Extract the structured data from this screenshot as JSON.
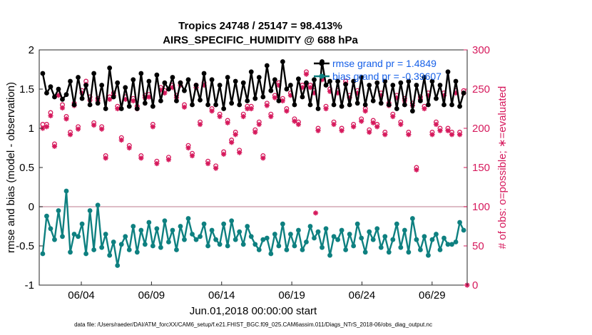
{
  "chart_data": {
    "type": "line",
    "title": "Tropics 24748 / 25147 = 98.413%",
    "subtitle": "AIRS_SPECIFIC_HUMIDITY @ 688 hPa",
    "xlabel": "Jun.01,2018 00:00:00 start",
    "ylabel": "rmse and bias (model - observation)",
    "ylabel_right": "# of obs: o=possible; ∗=evaluated",
    "xlim": [
      1,
      31.5
    ],
    "ylim": [
      -1,
      2
    ],
    "ylim_right": [
      0,
      300
    ],
    "x_tick_values": [
      4,
      9,
      14,
      19,
      24,
      29
    ],
    "x_tick_labels": [
      "06/04",
      "06/09",
      "06/14",
      "06/19",
      "06/24",
      "06/29"
    ],
    "y_tick_values": [
      -1,
      -0.5,
      0,
      0.5,
      1,
      1.5,
      2
    ],
    "y_tick_labels": [
      "-1",
      "-0.5",
      "0",
      "0.5",
      "1",
      "1.5",
      "2"
    ],
    "y_right_tick_values": [
      0,
      50,
      100,
      150,
      200,
      250,
      300
    ],
    "y_right_tick_labels": [
      "0",
      "50",
      "100",
      "150",
      "200",
      "250",
      "300"
    ],
    "zero_line": 0,
    "grid": false,
    "legend_position": "top-right",
    "series": [
      {
        "name": "rmse grand pr = 1.4849",
        "axis": "left",
        "color": "#000000",
        "values": [
          1.7,
          1.45,
          1.53,
          1.4,
          1.5,
          1.37,
          1.43,
          1.6,
          1.3,
          1.65,
          1.38,
          1.55,
          1.3,
          1.7,
          1.32,
          1.55,
          1.25,
          1.77,
          1.4,
          1.58,
          1.25,
          1.52,
          1.28,
          1.62,
          1.25,
          1.7,
          1.32,
          1.6,
          1.28,
          1.68,
          1.35,
          1.58,
          1.5,
          1.65,
          1.35,
          1.58,
          1.48,
          1.62,
          1.3,
          1.55,
          1.36,
          1.7,
          1.3,
          1.62,
          1.3,
          1.55,
          1.25,
          1.65,
          1.32,
          1.6,
          1.3,
          1.58,
          1.35,
          1.72,
          1.38,
          1.65,
          1.4,
          1.8,
          1.48,
          1.62,
          1.35,
          1.85,
          1.5,
          1.55,
          1.3,
          1.63,
          1.4,
          1.58,
          1.3,
          1.62,
          1.25,
          1.85,
          1.55,
          1.6,
          1.3,
          1.6,
          1.28,
          1.56,
          1.3,
          1.6,
          1.32,
          1.65,
          1.3,
          1.55,
          1.35,
          1.58,
          1.32,
          1.6,
          1.3,
          1.55,
          1.25,
          1.58,
          1.3,
          1.6,
          1.22,
          1.55,
          1.35,
          1.65,
          1.3,
          1.6,
          1.38,
          1.55,
          1.3,
          1.72,
          1.3,
          1.6,
          1.28,
          1.45
        ]
      },
      {
        "name": "bias grand pr = -0.39607",
        "axis": "left",
        "color": "#0e8080",
        "values": [
          -0.6,
          -0.12,
          -0.28,
          -0.42,
          -0.05,
          -0.38,
          0.2,
          -0.58,
          -0.35,
          -0.38,
          -0.22,
          -0.6,
          -0.05,
          -0.55,
          0.02,
          -0.52,
          -0.35,
          -0.62,
          -0.45,
          -0.75,
          -0.48,
          -0.38,
          -0.55,
          -0.25,
          -0.58,
          -0.3,
          -0.48,
          -0.2,
          -0.5,
          -0.28,
          -0.52,
          -0.18,
          -0.45,
          -0.3,
          -0.55,
          -0.25,
          -0.42,
          -0.15,
          -0.35,
          -0.42,
          -0.38,
          -0.22,
          -0.5,
          -0.3,
          -0.42,
          -0.48,
          -0.22,
          -0.5,
          -0.18,
          -0.42,
          -0.32,
          -0.48,
          -0.25,
          -0.38,
          -0.48,
          -0.55,
          -0.42,
          -0.4,
          -0.6,
          -0.35,
          -0.5,
          -0.22,
          -0.55,
          -0.35,
          -0.5,
          -0.3,
          -0.55,
          -0.45,
          -0.25,
          -0.4,
          -0.32,
          -0.52,
          -0.28,
          -0.62,
          -0.38,
          -0.42,
          -0.3,
          -0.55,
          -0.35,
          -0.5,
          -0.22,
          -0.4,
          -0.58,
          -0.32,
          -0.42,
          -0.28,
          -0.52,
          -0.38,
          -0.58,
          -0.42,
          -0.22,
          -0.52,
          -0.3,
          -0.58,
          -0.15,
          -0.42,
          -0.55,
          -0.38,
          -0.62,
          -0.42,
          -0.35,
          -0.55,
          -0.4,
          -0.48,
          -0.48,
          -0.45,
          -0.2,
          -0.3
        ]
      },
      {
        "name": "obs possible",
        "axis": "right",
        "color": "#d6195c",
        "values": [
          205,
          205,
          220,
          180,
          245,
          230,
          215,
          195,
          232,
          202,
          248,
          260,
          240,
          207,
          238,
          202,
          165,
          240,
          245,
          228,
          188,
          240,
          178,
          238,
          228,
          165,
          242,
          243,
          205,
          158,
          252,
          248,
          163,
          255,
          242,
          258,
          230,
          178,
          168,
          255,
          208,
          258,
          158,
          225,
          152,
          218,
          170,
          210,
          185,
          195,
          172,
          218,
          228,
          228,
          198,
          208,
          165,
          232,
          218,
          242,
          258,
          238,
          225,
          245,
          212,
          208,
          255,
          272,
          255,
          248,
          200,
          265,
          228,
          250,
          208,
          248,
          200,
          260,
          242,
          205,
          248,
          212,
          225,
          198,
          210,
          205,
          245,
          195,
          232,
          218,
          242,
          208,
          238,
          195,
          232,
          150,
          240,
          228,
          245,
          195,
          208,
          200,
          245,
          200,
          195,
          248,
          195,
          248
        ],
        "stroke": "circle"
      },
      {
        "name": "obs evaluated",
        "axis": "right",
        "color": "#d6195c",
        "values": [
          200,
          202,
          216,
          177,
          242,
          226,
          212,
          192,
          229,
          199,
          245,
          256,
          236,
          204,
          235,
          199,
          162,
          237,
          242,
          225,
          185,
          237,
          175,
          235,
          225,
          162,
          239,
          240,
          202,
          155,
          249,
          245,
          160,
          252,
          239,
          255,
          227,
          175,
          165,
          252,
          205,
          255,
          155,
          222,
          149,
          215,
          167,
          207,
          182,
          192,
          169,
          215,
          225,
          225,
          195,
          205,
          162,
          229,
          215,
          239,
          255,
          235,
          222,
          242,
          209,
          205,
          252,
          269,
          252,
          245,
          197,
          262,
          225,
          247,
          205,
          245,
          197,
          257,
          239,
          202,
          245,
          209,
          222,
          195,
          207,
          202,
          242,
          192,
          229,
          215,
          239,
          205,
          235,
          192,
          229,
          147,
          237,
          225,
          242,
          192,
          205,
          197,
          242,
          197,
          192,
          245,
          192,
          245
        ]
      }
    ],
    "extra_evaluated_points": [
      {
        "x": 20.7,
        "y_right": 92
      },
      {
        "x": 31.5,
        "y_right": 0
      }
    ],
    "legend": [
      {
        "label": "rmse grand pr = 1.4849",
        "color": "#000000"
      },
      {
        "label": "bias grand pr = -0.39607",
        "color": "#0e8080"
      }
    ],
    "footer": "data file: /Users/raeder/DAI/ATM_forcXX/CAM6_setup/f.e21.FHIST_BGC.f09_025.CAM6assim.011/Diags_NTrS_2018-06/obs_diag_output.nc"
  },
  "colors": {
    "rmse": "#000000",
    "bias": "#0e8080",
    "obs": "#d6195c",
    "legend_text": "#1660e8",
    "zero_line": "#d4a6b4"
  }
}
